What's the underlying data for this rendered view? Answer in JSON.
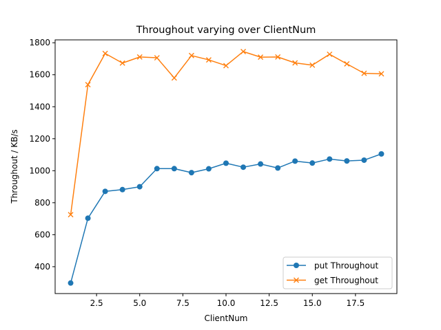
{
  "chart_data": {
    "type": "line",
    "title": "Throughout varying over ClientNum",
    "xlabel": "ClientNum",
    "ylabel": "Throughout / KB/s",
    "xlim": [
      0.1,
      19.9
    ],
    "ylim": [
      232,
      1818
    ],
    "xticks": [
      2.5,
      5.0,
      7.5,
      10.0,
      12.5,
      15.0,
      17.5
    ],
    "xtick_labels": [
      "2.5",
      "5.0",
      "7.5",
      "10.0",
      "12.5",
      "15.0",
      "17.5"
    ],
    "yticks": [
      400,
      600,
      800,
      1000,
      1200,
      1400,
      1600,
      1800
    ],
    "ytick_labels": [
      "400",
      "600",
      "800",
      "1000",
      "1200",
      "1400",
      "1600",
      "1800"
    ],
    "grid": false,
    "legend_position": "lower-right",
    "x": [
      1,
      2,
      3,
      4,
      5,
      6,
      7,
      8,
      9,
      10,
      11,
      12,
      13,
      14,
      15,
      16,
      17,
      18,
      19
    ],
    "series": [
      {
        "name": "put Throughout",
        "marker": "circle",
        "color": "#1f77b4",
        "values": [
          298,
          703,
          871,
          882,
          900,
          1013,
          1013,
          988,
          1012,
          1047,
          1022,
          1042,
          1017,
          1060,
          1048,
          1073,
          1061,
          1066,
          1105
        ]
      },
      {
        "name": "get Throughout",
        "marker": "x",
        "color": "#ff7f0e",
        "values": [
          725,
          1538,
          1733,
          1673,
          1711,
          1706,
          1580,
          1720,
          1693,
          1657,
          1745,
          1710,
          1711,
          1674,
          1660,
          1728,
          1668,
          1609,
          1606
        ]
      }
    ]
  }
}
